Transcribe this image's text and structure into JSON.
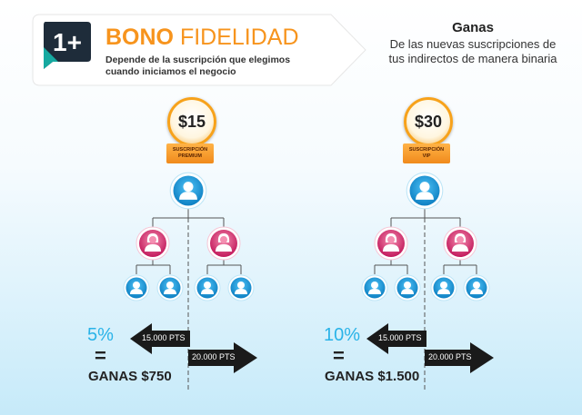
{
  "brand": {
    "logo_text": "1+",
    "title_bold": "BONO",
    "title_light": "FIDELIDAD",
    "subtitle": "Depende de la suscripción que elegimos cuando iniciamos el negocio"
  },
  "ganas": {
    "title": "Ganas",
    "description": "De las nuevas suscripciones de tus indirectos de manera binaria"
  },
  "plans": [
    {
      "price": "$15",
      "label_line1": "SUSCRIPCIÓN",
      "label_line2": "PREMIUM",
      "percent": "5%",
      "equals": "=",
      "gain": "GANAS $750",
      "left_points": "15.000 PTS",
      "right_points": "20.000 PTS"
    },
    {
      "price": "$30",
      "label_line1": "SUSCRIPCIÓN",
      "label_line2": "VIP",
      "percent": "10%",
      "equals": "=",
      "gain": "GANAS $1.500",
      "left_points": "15.000 PTS",
      "right_points": "20.000 PTS"
    }
  ],
  "colors": {
    "accent_orange": "#f7941d",
    "blue_node": "#1b9ad6",
    "pink_node": "#e0457b",
    "percent_blue": "#29b3e8"
  }
}
